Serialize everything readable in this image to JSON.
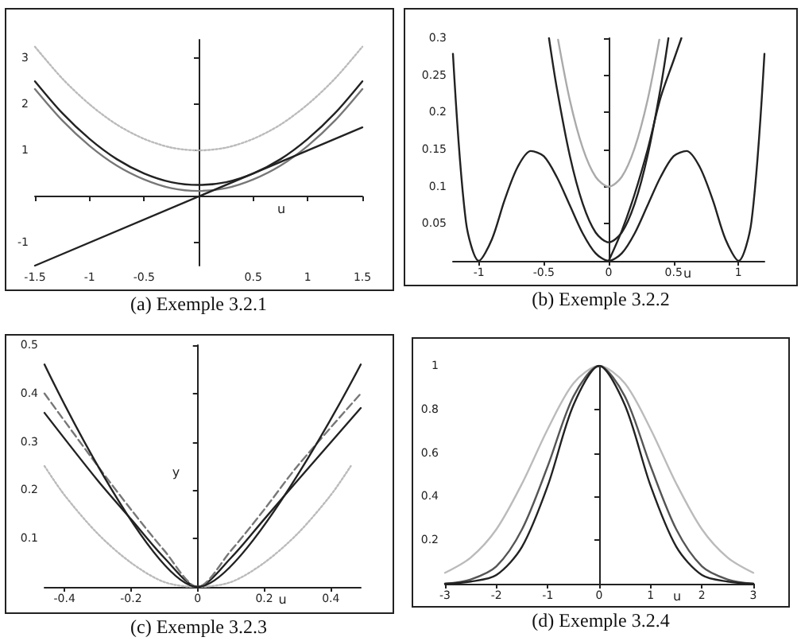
{
  "chart_data": [
    {
      "type": "line",
      "title": "(a) Exemple 3.2.1",
      "xlabel": "u",
      "xlim": [
        -1.5,
        1.5
      ],
      "ylim": [
        -1.5,
        3.4
      ],
      "xticks": [
        -1.5,
        -1,
        -0.5,
        0.5,
        1,
        1.5
      ],
      "yticks": [
        -1,
        1,
        2,
        3
      ],
      "series": [
        {
          "color": "#bbbbbb",
          "line_style": "dotted",
          "x": [
            -1.5,
            -1.25,
            -1,
            -0.75,
            -0.5,
            -0.25,
            0,
            0.25,
            0.5,
            0.75,
            1,
            1.25,
            1.5
          ],
          "values": [
            3.25,
            2.56,
            2,
            1.56,
            1.25,
            1.06,
            1,
            1.06,
            1.25,
            1.56,
            2,
            2.56,
            3.25
          ]
        },
        {
          "color": "#777777",
          "line_style": "solid",
          "x": [
            -1.5,
            -1.25,
            -1,
            -0.75,
            -0.5,
            -0.25,
            0,
            0.25,
            0.5,
            0.75,
            1,
            1.25,
            1.5
          ],
          "values": [
            2.33,
            1.65,
            1.1,
            0.67,
            0.37,
            0.18,
            0.12,
            0.18,
            0.37,
            0.67,
            1.1,
            1.65,
            2.33
          ]
        },
        {
          "color": "#222222",
          "line_style": "solid",
          "x": [
            -1.5,
            -1.25,
            -1,
            -0.75,
            -0.5,
            -0.25,
            0,
            0.25,
            0.5,
            0.75,
            1,
            1.25,
            1.5
          ],
          "values": [
            2.5,
            1.81,
            1.25,
            0.81,
            0.5,
            0.31,
            0.25,
            0.31,
            0.5,
            0.81,
            1.25,
            1.81,
            2.5
          ]
        },
        {
          "color": "#222222",
          "line_style": "solid",
          "x": [
            -1.5,
            1.5
          ],
          "values": [
            -1.5,
            1.5
          ]
        }
      ]
    },
    {
      "type": "line",
      "title": "(b) Exemple 3.2.2",
      "xlabel": "u",
      "xlim": [
        -1.2,
        1.2
      ],
      "ylim": [
        0,
        0.3
      ],
      "xticks": [
        -1,
        -0.5,
        0,
        0.5,
        1
      ],
      "yticks": [
        0.05,
        0.1,
        0.15,
        0.2,
        0.25,
        0.3
      ],
      "series": [
        {
          "color": "#222222",
          "line_style": "solid",
          "x": [
            -1.2,
            -1.1,
            -1,
            -0.9,
            -0.8,
            -0.7,
            -0.6,
            -0.5,
            -0.4,
            -0.3,
            -0.2,
            -0.1,
            0,
            0.1,
            0.2,
            0.3,
            0.4,
            0.5,
            0.6,
            0.7,
            0.8,
            0.9,
            1,
            1.1,
            1.2
          ],
          "values": [
            0.279,
            0.053,
            0,
            0.029,
            0.083,
            0.127,
            0.148,
            0.141,
            0.113,
            0.075,
            0.037,
            0.01,
            0,
            0.01,
            0.037,
            0.075,
            0.113,
            0.141,
            0.148,
            0.127,
            0.083,
            0.029,
            0,
            0.053,
            0.279
          ]
        },
        {
          "color": "#222222",
          "line_style": "solid",
          "x": [
            -0.46,
            -0.4,
            -0.3,
            -0.2,
            -0.1,
            0,
            0.1,
            0.2,
            0.3,
            0.4,
            0.46
          ],
          "values": [
            0.3,
            0.233,
            0.142,
            0.077,
            0.038,
            0.025,
            0.038,
            0.077,
            0.142,
            0.233,
            0.3
          ]
        },
        {
          "color": "#aaaaaa",
          "line_style": "solid",
          "x": [
            -0.39,
            -0.3,
            -0.2,
            -0.1,
            0,
            0.1,
            0.2,
            0.3,
            0.39
          ],
          "values": [
            0.298,
            0.217,
            0.152,
            0.113,
            0.1,
            0.113,
            0.152,
            0.217,
            0.298
          ]
        },
        {
          "color": "#222222",
          "line_style": "solid",
          "x": [
            0,
            0.1,
            0.2,
            0.3,
            0.4,
            0.5,
            0.56
          ],
          "values": [
            0,
            0.04,
            0.09,
            0.15,
            0.22,
            0.27,
            0.3
          ]
        }
      ]
    },
    {
      "type": "line",
      "title": "(c) Exemple 3.2.3",
      "xlabel": "u",
      "ylabel": "y",
      "xlim": [
        -0.46,
        0.49
      ],
      "ylim": [
        0,
        0.5
      ],
      "xticks": [
        -0.4,
        -0.2,
        0,
        0.2,
        0.4
      ],
      "yticks": [
        0.1,
        0.2,
        0.3,
        0.4,
        0.5
      ],
      "series": [
        {
          "color": "#bbbbbb",
          "line_style": "dotted",
          "x": [
            -0.46,
            -0.4,
            -0.3,
            -0.2,
            -0.1,
            0,
            0.1,
            0.2,
            0.3,
            0.4,
            0.46
          ],
          "values": [
            0.25,
            0.19,
            0.11,
            0.05,
            0.01,
            0,
            0.01,
            0.05,
            0.11,
            0.19,
            0.25
          ]
        },
        {
          "color": "#222222",
          "line_style": "solid",
          "x": [
            -0.46,
            -0.3,
            -0.2,
            -0.1,
            0,
            0.1,
            0.2,
            0.3,
            0.49
          ],
          "values": [
            0.36,
            0.22,
            0.14,
            0.06,
            0,
            0.06,
            0.14,
            0.22,
            0.37
          ]
        },
        {
          "color": "#777777",
          "line_style": "dashed",
          "x": [
            -0.46,
            -0.3,
            -0.2,
            -0.1,
            0,
            0.1,
            0.2,
            0.3,
            0.49
          ],
          "values": [
            0.4,
            0.25,
            0.16,
            0.075,
            0,
            0.075,
            0.16,
            0.25,
            0.4
          ]
        },
        {
          "color": "#222222",
          "line_style": "solid",
          "x": [
            -0.46,
            0,
            0.49
          ],
          "values": [
            0.46,
            0,
            0.46
          ]
        }
      ]
    },
    {
      "type": "line",
      "title": "(d) Exemple 3.2.4",
      "xlabel": "u",
      "xlim": [
        -3,
        3
      ],
      "ylim": [
        0,
        1
      ],
      "xticks": [
        -3,
        -2,
        -1,
        0,
        1,
        2,
        3
      ],
      "yticks": [
        0.2,
        0.4,
        0.6,
        0.8,
        1
      ],
      "series": [
        {
          "color": "#bbbbbb",
          "line_style": "solid",
          "x": [
            -3,
            -2.5,
            -2,
            -1.5,
            -1,
            -0.5,
            0,
            0.5,
            1,
            1.5,
            2,
            2.5,
            3
          ],
          "values": [
            0.05,
            0.12,
            0.25,
            0.46,
            0.71,
            0.92,
            1,
            0.92,
            0.71,
            0.46,
            0.25,
            0.12,
            0.05
          ]
        },
        {
          "color": "#555555",
          "line_style": "solid",
          "x": [
            -3,
            -2.5,
            -2,
            -1.5,
            -1,
            -0.5,
            0,
            0.5,
            1,
            1.5,
            2,
            2.5,
            3
          ],
          "values": [
            0,
            0.02,
            0.08,
            0.25,
            0.54,
            0.86,
            1,
            0.86,
            0.54,
            0.25,
            0.08,
            0.02,
            0
          ]
        },
        {
          "color": "#222222",
          "line_style": "solid",
          "x": [
            -3,
            -2.5,
            -2,
            -1.5,
            -1,
            -0.5,
            0,
            0.5,
            1,
            1.5,
            2,
            2.5,
            3
          ],
          "values": [
            0,
            0.01,
            0.04,
            0.17,
            0.45,
            0.82,
            1,
            0.82,
            0.45,
            0.17,
            0.04,
            0.01,
            0
          ]
        }
      ]
    }
  ]
}
